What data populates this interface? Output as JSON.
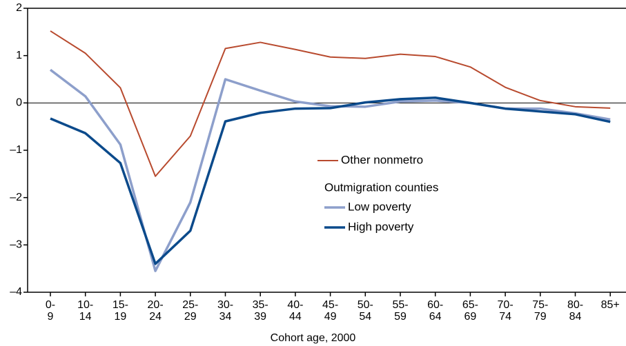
{
  "chart_data": {
    "type": "line",
    "x_label": "Cohort age, 2000",
    "categories": [
      "0-\n9",
      "10-\n14",
      "15-\n19",
      "20-\n24",
      "25-\n29",
      "30-\n34",
      "35-\n39",
      "40-\n44",
      "45-\n49",
      "50-\n54",
      "55-\n59",
      "60-\n64",
      "65-\n69",
      "70-\n74",
      "75-\n79",
      "80-\n84",
      "85+"
    ],
    "series": [
      {
        "name": "Other nonmetro",
        "color": "#b84a2e",
        "width": 2,
        "values": [
          1.52,
          1.05,
          0.32,
          -1.55,
          -0.7,
          1.15,
          1.28,
          1.13,
          0.97,
          0.94,
          1.03,
          0.98,
          0.76,
          0.33,
          0.05,
          -0.08,
          -0.11
        ]
      },
      {
        "name": "Low poverty",
        "color": "#8d9fcb",
        "width": 3.5,
        "values": [
          0.7,
          0.14,
          -0.88,
          -3.55,
          -2.1,
          0.5,
          0.26,
          0.03,
          -0.07,
          -0.08,
          0.03,
          0.05,
          0.0,
          -0.12,
          -0.12,
          -0.22,
          -0.35
        ]
      },
      {
        "name": "High poverty",
        "color": "#0b4a8b",
        "width": 3.5,
        "values": [
          -0.33,
          -0.64,
          -1.27,
          -3.4,
          -2.7,
          -0.39,
          -0.21,
          -0.12,
          -0.11,
          0.01,
          0.08,
          0.11,
          0.0,
          -0.12,
          -0.18,
          -0.24,
          -0.4
        ]
      }
    ],
    "legend_title": "Outmigration counties",
    "ylim": [
      -4,
      2
    ],
    "yticks": [
      {
        "value": -4,
        "label": "–4"
      },
      {
        "value": -3,
        "label": "–3"
      },
      {
        "value": -2,
        "label": "–2"
      },
      {
        "value": -1,
        "label": "–1"
      },
      0,
      1,
      2
    ],
    "zero_line": true
  }
}
